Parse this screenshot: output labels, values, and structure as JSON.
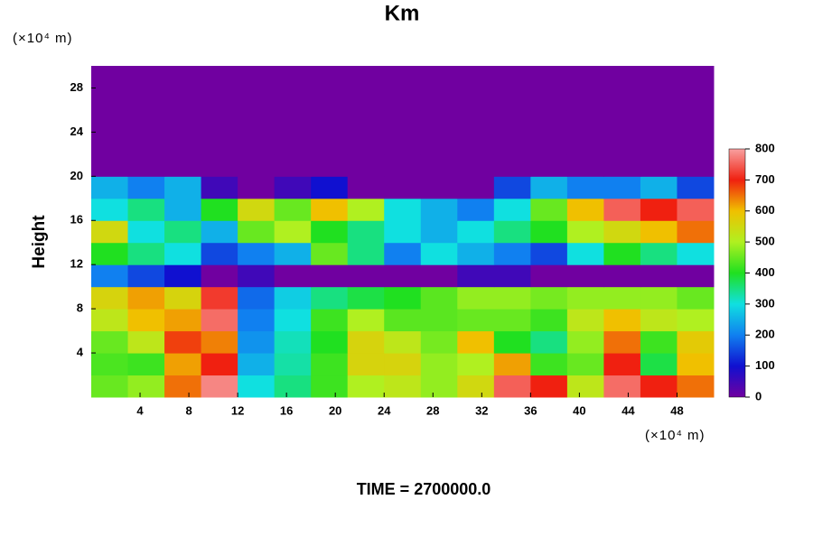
{
  "chart_data": {
    "type": "heatmap",
    "title": "Km",
    "x_unit_label": "(×10⁴ m)",
    "y_unit_label": "(×10⁴ m)",
    "y_label": "Height",
    "footer": "TIME = 2700000.0",
    "xlim": [
      0,
      51
    ],
    "ylim": [
      0,
      30
    ],
    "xticks": [
      4,
      8,
      12,
      16,
      20,
      24,
      28,
      32,
      36,
      40,
      44,
      48
    ],
    "yticks": [
      4,
      8,
      12,
      16,
      20,
      24,
      28
    ],
    "x": [
      1.5,
      4.5,
      7.5,
      10.5,
      13.5,
      16.5,
      19.5,
      22.5,
      25.5,
      28.5,
      31.5,
      34.5,
      37.5,
      40.5,
      43.5,
      46.5,
      49.5
    ],
    "y": [
      1,
      3,
      5,
      7,
      9,
      11,
      13,
      15,
      17,
      19,
      21,
      23,
      25,
      27,
      29
    ],
    "z": [
      [
        450,
        480,
        650,
        780,
        300,
        350,
        420,
        500,
        520,
        480,
        550,
        750,
        700,
        520,
        760,
        700,
        650
      ],
      [
        430,
        420,
        620,
        700,
        250,
        330,
        420,
        560,
        560,
        480,
        500,
        620,
        420,
        450,
        700,
        380,
        600
      ],
      [
        450,
        520,
        680,
        640,
        220,
        320,
        400,
        560,
        520,
        460,
        600,
        400,
        350,
        480,
        650,
        420,
        580
      ],
      [
        520,
        600,
        620,
        760,
        200,
        300,
        420,
        500,
        440,
        440,
        450,
        450,
        420,
        520,
        600,
        520,
        500
      ],
      [
        560,
        620,
        560,
        720,
        180,
        280,
        350,
        380,
        400,
        440,
        480,
        480,
        460,
        480,
        480,
        480,
        450
      ],
      [
        200,
        150,
        100,
        0,
        50,
        0,
        0,
        0,
        0,
        0,
        50,
        50,
        0,
        0,
        0,
        0,
        0
      ],
      [
        400,
        350,
        300,
        150,
        200,
        250,
        450,
        350,
        200,
        300,
        250,
        200,
        150,
        300,
        400,
        350,
        300
      ],
      [
        550,
        300,
        350,
        250,
        450,
        500,
        400,
        350,
        300,
        250,
        300,
        350,
        400,
        500,
        550,
        600,
        650
      ],
      [
        300,
        350,
        250,
        400,
        550,
        450,
        600,
        500,
        300,
        250,
        200,
        300,
        450,
        600,
        750,
        700,
        750
      ],
      [
        250,
        200,
        250,
        50,
        0,
        50,
        100,
        0,
        0,
        0,
        0,
        150,
        250,
        200,
        200,
        250,
        150
      ],
      [
        0,
        0,
        0,
        0,
        0,
        0,
        0,
        0,
        0,
        0,
        0,
        0,
        0,
        0,
        0,
        0,
        0
      ],
      [
        0,
        0,
        0,
        0,
        0,
        0,
        0,
        0,
        0,
        0,
        0,
        0,
        0,
        0,
        0,
        0,
        0
      ],
      [
        0,
        0,
        0,
        0,
        0,
        0,
        0,
        0,
        0,
        0,
        0,
        0,
        0,
        0,
        0,
        0,
        0
      ],
      [
        0,
        0,
        0,
        0,
        0,
        0,
        0,
        0,
        0,
        0,
        0,
        0,
        0,
        0,
        0,
        0,
        0
      ],
      [
        0,
        0,
        0,
        0,
        0,
        0,
        0,
        0,
        0,
        0,
        0,
        0,
        0,
        0,
        0,
        0,
        0
      ]
    ],
    "clim": [
      0,
      800
    ],
    "cticks": [
      0,
      100,
      200,
      300,
      400,
      500,
      600,
      700,
      800
    ],
    "colors": [
      "#7000a0",
      "#1010d0",
      "#1080f0",
      "#10e0e0",
      "#20e020",
      "#b0f020",
      "#f0c000",
      "#f02010",
      "#f8a0a0"
    ]
  }
}
